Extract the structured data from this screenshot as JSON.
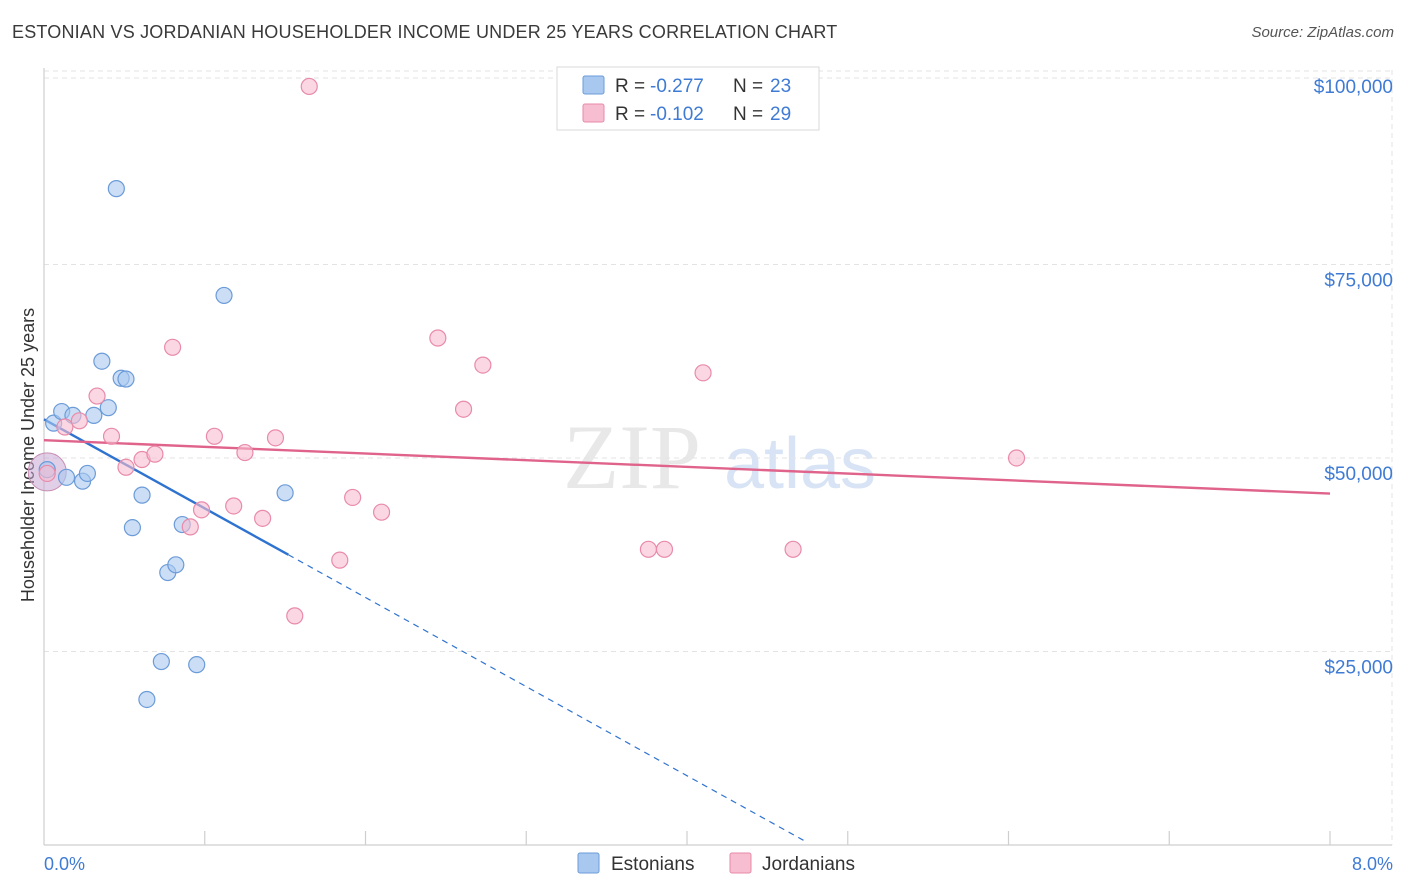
{
  "title": "ESTONIAN VS JORDANIAN HOUSEHOLDER INCOME UNDER 25 YEARS CORRELATION CHART",
  "source": "Source: ZipAtlas.com",
  "watermark": {
    "zip": "ZIP",
    "atlas": "atlas"
  },
  "chart_data": {
    "type": "scatter",
    "xlabel": "",
    "ylabel": "Householder Income Under 25 years",
    "xlim": [
      0.0,
      8.0
    ],
    "ylim": [
      0,
      104000
    ],
    "x_tick_labels": {
      "min": "0.0%",
      "max": "8.0%"
    },
    "y_ticks": [
      {
        "value": 25000,
        "label": "$25,000"
      },
      {
        "value": 50000,
        "label": "$50,000"
      },
      {
        "value": 75000,
        "label": "$75,000"
      },
      {
        "value": 100000,
        "label": "$100,000"
      }
    ],
    "grid": true,
    "legend_position": "top-center",
    "series": [
      {
        "name": "Estonians",
        "color": "#a9c8f0",
        "edge_color": "#6b9bd8",
        "line_color": "#2f73d0",
        "r_label": "R =",
        "r_value": "-0.277",
        "n_label": "N =",
        "n_value": "23",
        "points": [
          [
            0.02,
            48500
          ],
          [
            0.06,
            54500
          ],
          [
            0.11,
            56000
          ],
          [
            0.14,
            47500
          ],
          [
            0.18,
            55500
          ],
          [
            0.24,
            47000
          ],
          [
            0.27,
            48000
          ],
          [
            0.31,
            55500
          ],
          [
            0.36,
            62500
          ],
          [
            0.4,
            56500
          ],
          [
            0.45,
            84800
          ],
          [
            0.48,
            60300
          ],
          [
            0.51,
            60200
          ],
          [
            0.55,
            41000
          ],
          [
            0.61,
            45200
          ],
          [
            0.64,
            18800
          ],
          [
            0.73,
            23700
          ],
          [
            0.77,
            35200
          ],
          [
            0.82,
            36200
          ],
          [
            0.86,
            41400
          ],
          [
            0.95,
            23300
          ],
          [
            1.12,
            71000
          ],
          [
            1.5,
            45500
          ]
        ],
        "trend": {
          "x0": 0.0,
          "y0": 55000,
          "x1": 1.52,
          "y1": 37500,
          "dash_to_x": 4.75
        }
      },
      {
        "name": "Jordanians",
        "color": "#f7bdd0",
        "edge_color": "#e98aa9",
        "line_color": "#e0638b",
        "r_label": "R =",
        "r_value": "-0.102",
        "n_label": "N =",
        "n_value": "29",
        "points": [
          [
            0.02,
            48000
          ],
          [
            0.13,
            54000
          ],
          [
            0.22,
            54800
          ],
          [
            0.33,
            58000
          ],
          [
            0.42,
            52800
          ],
          [
            0.51,
            48800
          ],
          [
            0.61,
            49800
          ],
          [
            0.69,
            50500
          ],
          [
            0.8,
            64300
          ],
          [
            0.91,
            41100
          ],
          [
            0.98,
            43300
          ],
          [
            1.06,
            52800
          ],
          [
            1.18,
            43800
          ],
          [
            1.25,
            50700
          ],
          [
            1.36,
            42200
          ],
          [
            1.44,
            52600
          ],
          [
            1.56,
            29600
          ],
          [
            1.65,
            98000
          ],
          [
            1.84,
            36800
          ],
          [
            1.92,
            44900
          ],
          [
            2.1,
            43000
          ],
          [
            2.45,
            65500
          ],
          [
            2.61,
            56300
          ],
          [
            2.73,
            62000
          ],
          [
            3.76,
            38200
          ],
          [
            3.86,
            38200
          ],
          [
            4.1,
            61000
          ],
          [
            4.66,
            38200
          ],
          [
            6.05,
            50000
          ]
        ],
        "trend": {
          "x0": 0.0,
          "y0": 52300,
          "x1": 8.0,
          "y1": 45400
        }
      }
    ]
  }
}
